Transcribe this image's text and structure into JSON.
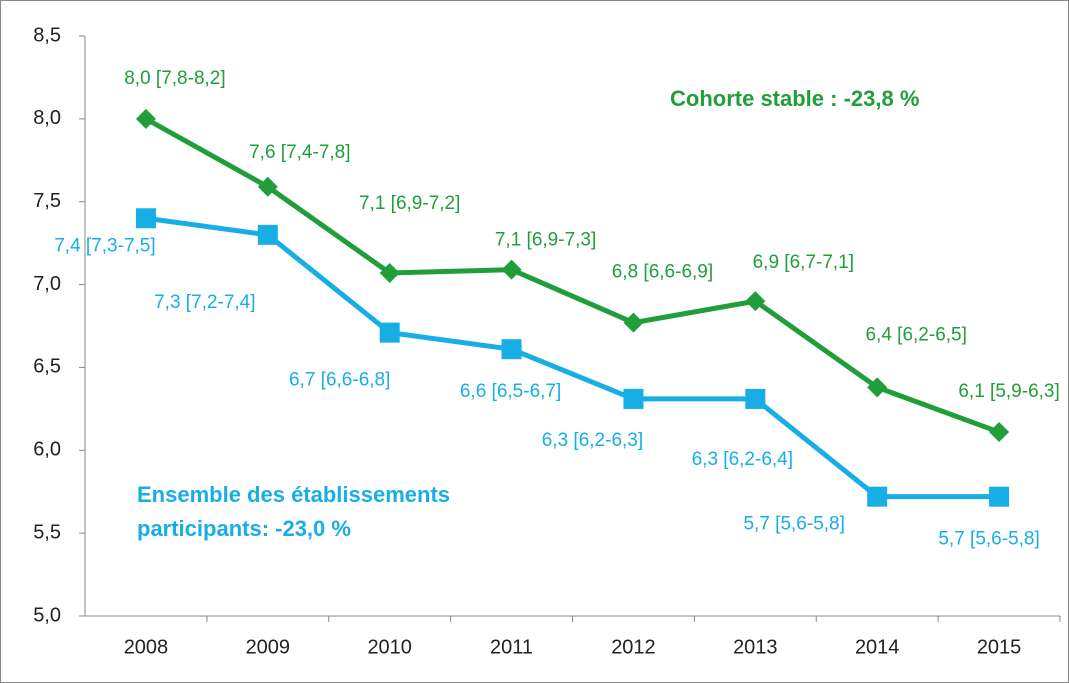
{
  "chart_data": {
    "type": "line",
    "categories": [
      "2008",
      "2009",
      "2010",
      "2011",
      "2012",
      "2013",
      "2014",
      "2015"
    ],
    "series": [
      {
        "name": "Cohorte stable : -23,8 %",
        "color": "#1f9e3a",
        "marker": "diamond",
        "values": [
          8.0,
          7.59,
          7.07,
          7.09,
          6.77,
          6.9,
          6.38,
          6.11
        ],
        "value_labels": [
          "8,0 [7,8-8,2]",
          "7,6 [7,4-7,8]",
          "7,1 [6,9-7,2]",
          "7,1 [6,9-7,3]",
          "6,8 [6,6-6,9]",
          "6,9 [6,7-7,1]",
          "6,4 [6,2-6,5]",
          "6,1 [5,9-6,3]"
        ]
      },
      {
        "name": "Ensemble des établissements participants: -23,0 %",
        "color": "#17aee6",
        "marker": "square",
        "values": [
          7.4,
          7.3,
          6.71,
          6.61,
          6.31,
          6.31,
          5.72,
          5.72
        ],
        "value_labels": [
          "7,4 [7,3-7,5]",
          "7,3 [7,2-7,4]",
          "6,7 [6,6-6,8]",
          "6,6 [6,5-6,7]",
          "6,3 [6,2-6,3]",
          "6,3 [6,2-6,4]",
          "5,7 [5,6-5,8]",
          "5,7 [5,6-5,8]"
        ]
      }
    ],
    "ylim": [
      5.0,
      8.5
    ],
    "yticks": [
      {
        "value": 5.0,
        "label": "5,0"
      },
      {
        "value": 5.5,
        "label": "5,5"
      },
      {
        "value": 6.0,
        "label": "6,0"
      },
      {
        "value": 6.5,
        "label": "6,5"
      },
      {
        "value": 7.0,
        "label": "7,0"
      },
      {
        "value": 7.5,
        "label": "7,5"
      },
      {
        "value": 8.0,
        "label": "8,0"
      },
      {
        "value": 8.5,
        "label": "8,5"
      }
    ],
    "grid": false
  }
}
